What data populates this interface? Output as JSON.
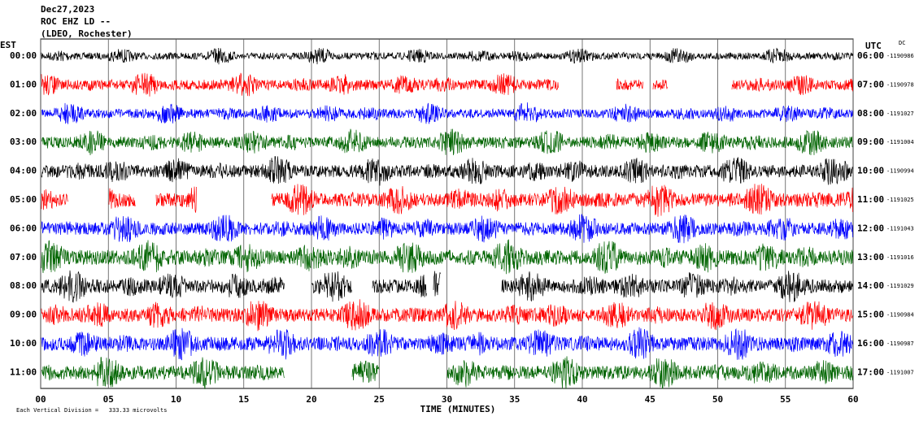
{
  "chart_data": {
    "type": "helicorder",
    "title_lines": [
      "Dec27,2023",
      "ROC EHZ LD --",
      "(LDEO, Rochester)"
    ],
    "left_axis_label": "EST",
    "right_axis_label": "UTC",
    "dc_label": "DC",
    "x_label": "TIME (MINUTES)",
    "footer": "Each Vertical Division =   333.33 microvolts",
    "xlim": [
      0,
      60
    ],
    "xticks": [
      {
        "value": 0,
        "label": "00"
      },
      {
        "value": 5,
        "label": "05"
      },
      10,
      15,
      20,
      25,
      30,
      35,
      40,
      45,
      50,
      55,
      60
    ],
    "grid": true,
    "colors": [
      "#000000",
      "#ff0000",
      "#0000ff",
      "#006400"
    ],
    "rows": [
      {
        "est": "00:00",
        "utc": "06:00",
        "dc": -1190986
      },
      {
        "est": "01:00",
        "utc": "07:00",
        "dc": -1190978
      },
      {
        "est": "02:00",
        "utc": "08:00",
        "dc": -1191027
      },
      {
        "est": "03:00",
        "utc": "09:00",
        "dc": -1191004
      },
      {
        "est": "04:00",
        "utc": "10:00",
        "dc": -1190994
      },
      {
        "est": "05:00",
        "utc": "11:00",
        "dc": -1191025
      },
      {
        "est": "06:00",
        "utc": "12:00",
        "dc": -1191043
      },
      {
        "est": "07:00",
        "utc": "13:00",
        "dc": -1191016
      },
      {
        "est": "08:00",
        "utc": "14:00",
        "dc": -1191029
      },
      {
        "est": "09:00",
        "utc": "15:00",
        "dc": -1190984
      },
      {
        "est": "10:00",
        "utc": "16:00",
        "dc": -1190987
      },
      {
        "est": "11:00",
        "utc": "17:00",
        "dc": -1191007
      }
    ]
  }
}
